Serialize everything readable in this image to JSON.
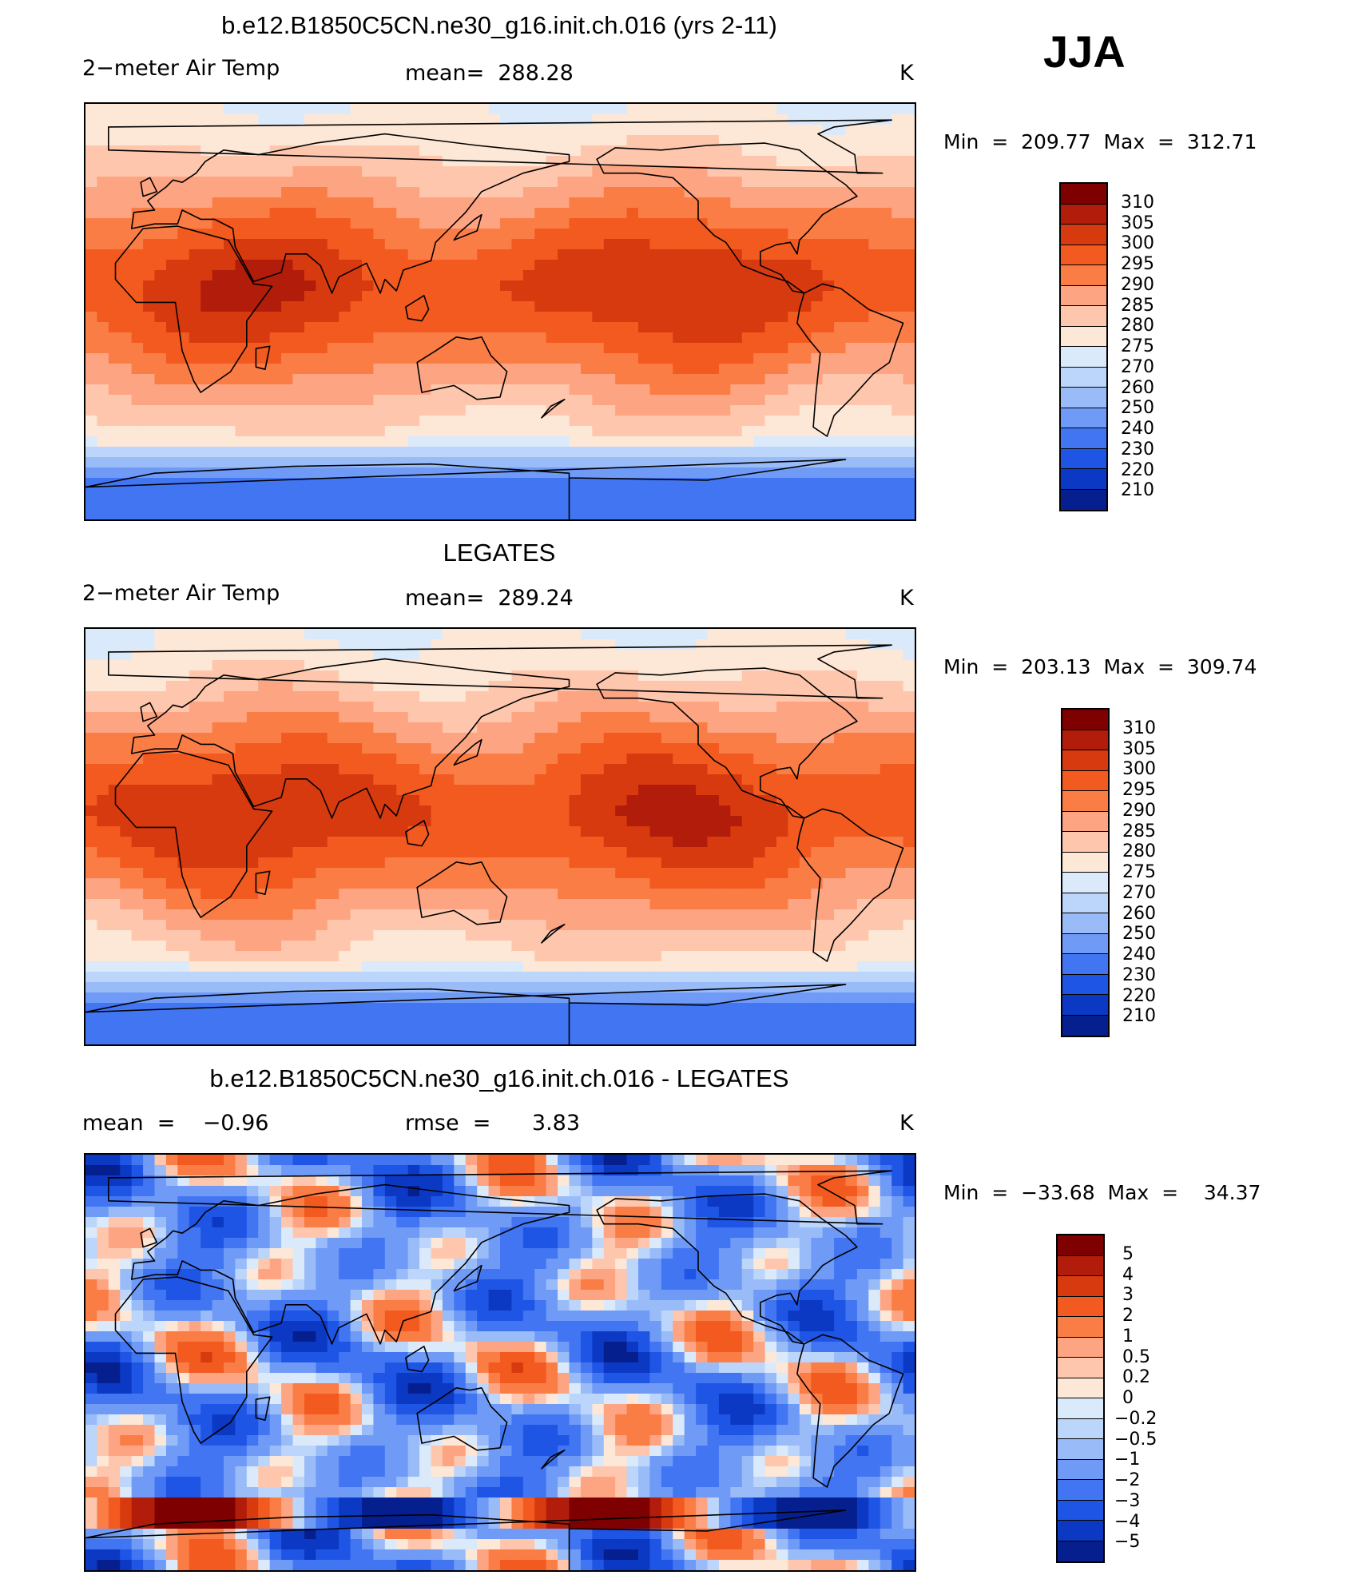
{
  "season": "JJA",
  "panels": [
    {
      "id": "model",
      "title": "b.e12.B1850C5CN.ne30_g16.init.ch.016 (yrs 2-11)",
      "left_label": "2−meter Air Temp",
      "center_label": "mean=  288.28",
      "units": "K",
      "minmax": "Min  =  209.77  Max  =  312.71",
      "scale": "abs",
      "anomaly": 0
    },
    {
      "id": "obs",
      "title": "LEGATES",
      "left_label": "2−meter Air Temp",
      "center_label": "mean=  289.24",
      "units": "K",
      "minmax": "Min  =  203.13  Max  =  309.74",
      "scale": "abs",
      "anomaly": 1
    },
    {
      "id": "diff",
      "title": "b.e12.B1850C5CN.ne30_g16.init.ch.016 - LEGATES",
      "left_label": "mean  =    −0.96",
      "center_label": "rmse  =      3.83",
      "units": "K",
      "minmax": "Min  =  −33.68  Max  =    34.37",
      "scale": "diff",
      "anomaly": 2
    }
  ],
  "colorbars": {
    "abs": {
      "colors": [
        "#7f0000",
        "#b21d0b",
        "#d83a0f",
        "#f25a1f",
        "#fb7d46",
        "#fda482",
        "#fec7ad",
        "#fde7d6",
        "#dbeafb",
        "#bcd5fb",
        "#99bcf9",
        "#6f9bf7",
        "#4275f2",
        "#1f55e5",
        "#0c39c4",
        "#061f8f"
      ],
      "ticks": [
        "310",
        "305",
        "300",
        "295",
        "290",
        "285",
        "280",
        "275",
        "270",
        "260",
        "250",
        "240",
        "230",
        "220",
        "210"
      ]
    },
    "diff": {
      "colors": [
        "#7f0000",
        "#b21d0b",
        "#d83a0f",
        "#f25a1f",
        "#fb7d46",
        "#fda482",
        "#fec7ad",
        "#fde7d6",
        "#dbeafb",
        "#bcd5fb",
        "#99bcf9",
        "#6f9bf7",
        "#4275f2",
        "#1f55e5",
        "#0c39c4",
        "#061f8f"
      ],
      "ticks": [
        "5",
        "4",
        "3",
        "2",
        "1",
        "0.5",
        "0.2",
        "0",
        "−0.2",
        "−0.5",
        "−1",
        "−2",
        "−3",
        "−4",
        "−5"
      ]
    }
  }
}
